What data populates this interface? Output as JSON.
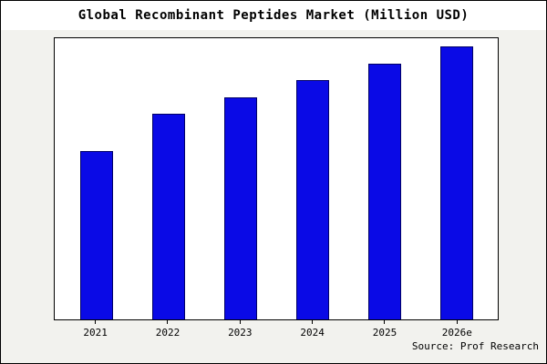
{
  "chart_data": {
    "type": "bar",
    "title": "Global Recombinant Peptides Market (Million USD)",
    "categories": [
      "2021",
      "2022",
      "2023",
      "2024",
      "2025",
      "2026e"
    ],
    "values": [
      60,
      73,
      79,
      85,
      91,
      97
    ],
    "xlabel": "",
    "ylabel": "",
    "ylim": [
      0,
      100
    ],
    "grid": false,
    "legend_position": "none"
  },
  "source": "Source: Prof Research",
  "colors": {
    "bar_fill": "#0a0ae6",
    "bar_edge": "#000066",
    "outer_background": "#f2f2ee",
    "plot_background": "#ffffff",
    "text": "#000000"
  }
}
